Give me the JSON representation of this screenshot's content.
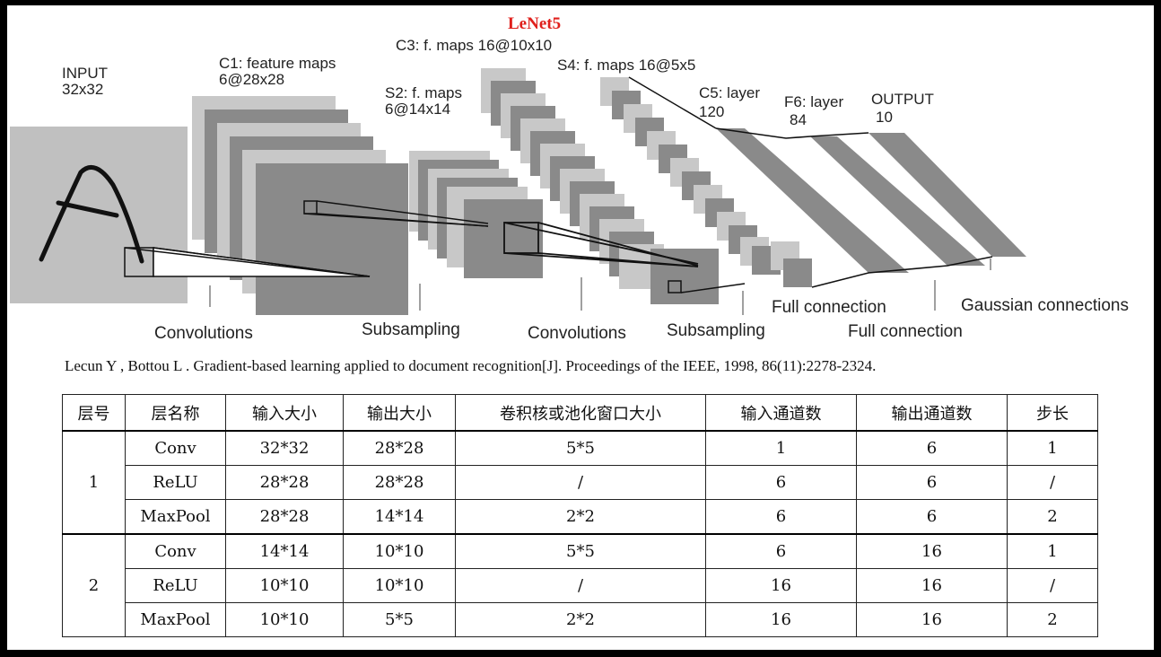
{
  "diagram": {
    "title": "LeNet5",
    "input_label": [
      "INPUT",
      "32x32"
    ],
    "c1_label": [
      "C1: feature maps",
      "6@28x28"
    ],
    "s2_label": [
      "S2: f. maps",
      "6@14x14"
    ],
    "c3_label": "C3: f. maps 16@10x10",
    "s4_label": "S4: f. maps 16@5x5",
    "c5_label": [
      "C5: layer",
      "120"
    ],
    "f6_label": [
      "F6: layer",
      "84"
    ],
    "output_label": [
      "OUTPUT",
      "10"
    ],
    "ops": {
      "conv1": "Convolutions",
      "sub1": "Subsampling",
      "conv2": "Convolutions",
      "sub2": "Subsampling",
      "full1": "Full connection",
      "full2": "Full connection",
      "gauss": "Gaussian connections"
    }
  },
  "citation": "Lecun Y , Bottou L . Gradient-based learning applied to document recognition[J]. Proceedings of the IEEE, 1998, 86(11):2278-2324.",
  "table": {
    "headers": [
      "层号",
      "层名称",
      "输入大小",
      "输出大小",
      "卷积核或池化窗口大小",
      "输入通道数",
      "输出通道数",
      "步长"
    ],
    "groups": [
      {
        "layer": "1",
        "rows": [
          [
            "Conv",
            "32*32",
            "28*28",
            "5*5",
            "1",
            "6",
            "1"
          ],
          [
            "ReLU",
            "28*28",
            "28*28",
            "/",
            "6",
            "6",
            "/"
          ],
          [
            "MaxPool",
            "28*28",
            "14*14",
            "2*2",
            "6",
            "6",
            "2"
          ]
        ]
      },
      {
        "layer": "2",
        "rows": [
          [
            "Conv",
            "14*14",
            "10*10",
            "5*5",
            "6",
            "16",
            "1"
          ],
          [
            "ReLU",
            "10*10",
            "10*10",
            "/",
            "16",
            "16",
            "/"
          ],
          [
            "MaxPool",
            "10*10",
            "5*5",
            "2*2",
            "16",
            "16",
            "2"
          ]
        ]
      }
    ]
  }
}
